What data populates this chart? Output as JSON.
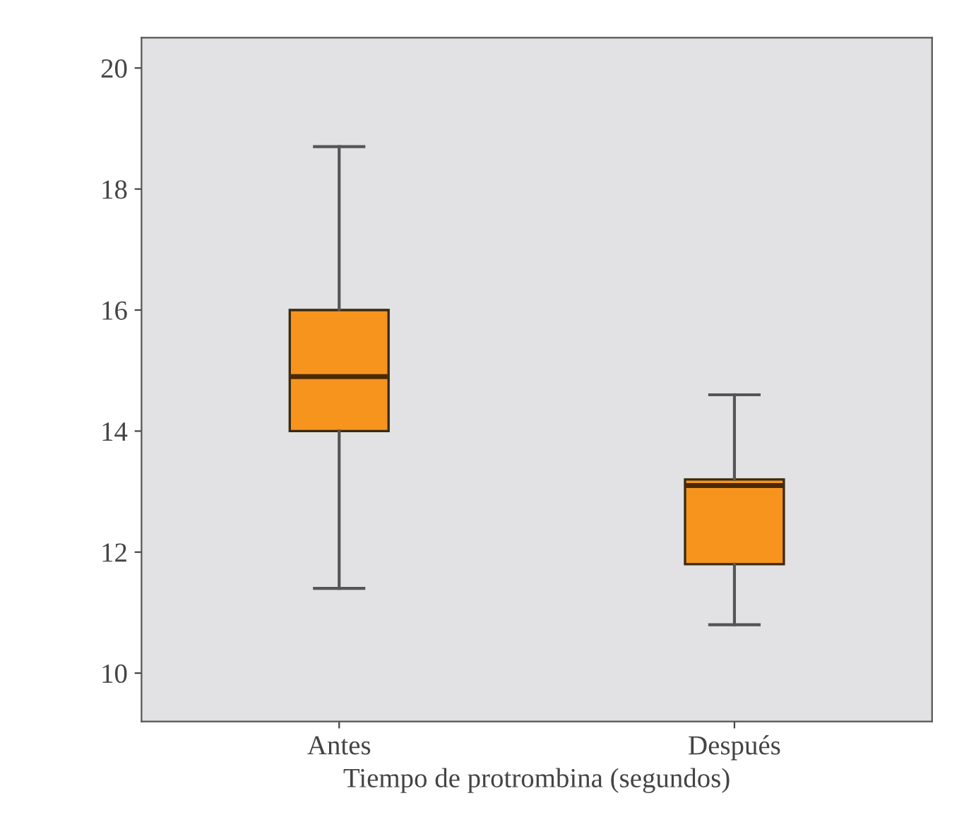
{
  "chart_data": {
    "type": "box",
    "xlabel": "Tiempo de protrombina (segundos)",
    "categories": [
      "Antes",
      "Después"
    ],
    "boxes": [
      {
        "low": 11.4,
        "q1": 14.0,
        "median": 14.9,
        "q3": 16.0,
        "high": 18.7
      },
      {
        "low": 10.8,
        "q1": 11.8,
        "median": 13.1,
        "q3": 13.2,
        "high": 14.6
      }
    ],
    "color": "#f7941d",
    "ylim": [
      9.2,
      20.5
    ],
    "yticks": [
      10,
      12,
      14,
      16,
      18,
      20
    ],
    "grid": false
  }
}
